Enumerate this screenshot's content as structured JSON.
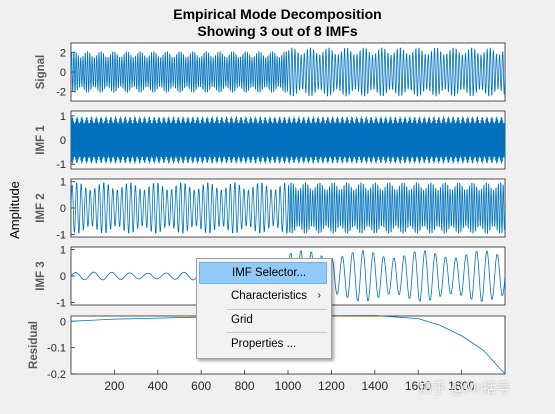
{
  "figure": {
    "title": "Empirical Mode Decomposition",
    "subtitle": "Showing 3 out of 8 IMFs",
    "y_common_label": "Amplitude"
  },
  "chart_data": [
    {
      "type": "line",
      "ylabel": "Signal",
      "xlim": [
        0,
        2000
      ],
      "ylim": [
        -3,
        3
      ],
      "yticks": [
        -2,
        0,
        2
      ],
      "series": [
        {
          "segments": [
            {
              "x_start": 0,
              "x_end": 1000,
              "amplitude": 2.2,
              "cycles": 95
            },
            {
              "x_start": 1000,
              "x_end": 2000,
              "amplitude": 2.6,
              "cycles": 70
            }
          ]
        }
      ]
    },
    {
      "type": "line",
      "ylabel": "IMF 1",
      "xlim": [
        0,
        2000
      ],
      "ylim": [
        -1.2,
        1.2
      ],
      "yticks": [
        -1,
        0,
        1
      ],
      "series": [
        {
          "segments": [
            {
              "x_start": 0,
              "x_end": 1000,
              "amplitude": 1.0,
              "cycles": 260
            },
            {
              "x_start": 1000,
              "x_end": 2000,
              "amplitude": 1.0,
              "cycles": 260
            }
          ]
        }
      ]
    },
    {
      "type": "line",
      "ylabel": "IMF 2",
      "xlim": [
        0,
        2000
      ],
      "ylim": [
        -1.1,
        1.1
      ],
      "yticks": [
        -1,
        0,
        1
      ],
      "series": [
        {
          "segments": [
            {
              "x_start": 0,
              "x_end": 1000,
              "amplitude": 1.0,
              "cycles": 48
            },
            {
              "x_start": 1000,
              "x_end": 2000,
              "amplitude": 1.0,
              "cycles": 90
            }
          ]
        }
      ]
    },
    {
      "type": "line",
      "ylabel": "IMF 3",
      "xlim": [
        0,
        2000
      ],
      "ylim": [
        -1.1,
        1.1
      ],
      "yticks": [
        -1,
        0,
        1
      ],
      "series": [
        {
          "segments": [
            {
              "x_start": 0,
              "x_end": 1000,
              "amplitude": 0.15,
              "cycles": 12
            },
            {
              "x_start": 1000,
              "x_end": 2000,
              "amplitude": 1.0,
              "cycles": 21
            }
          ]
        }
      ]
    },
    {
      "type": "line",
      "ylabel": "Residual",
      "xlim": [
        0,
        2000
      ],
      "ylim": [
        -0.2,
        0.02
      ],
      "yticks": [
        -0.2,
        -0.1,
        0
      ],
      "xticks": [
        200,
        400,
        600,
        800,
        1000,
        1200,
        1400,
        1600,
        1800
      ],
      "series": [
        {
          "points": [
            [
              0,
              0.0
            ],
            [
              200,
              0.008
            ],
            [
              400,
              0.012
            ],
            [
              600,
              0.016
            ],
            [
              800,
              0.018
            ],
            [
              1000,
              0.018
            ],
            [
              1200,
              0.021
            ],
            [
              1400,
              0.022
            ],
            [
              1600,
              0.01
            ],
            [
              1700,
              -0.015
            ],
            [
              1800,
              -0.055
            ],
            [
              1900,
              -0.11
            ],
            [
              2000,
              -0.2
            ]
          ]
        }
      ]
    }
  ],
  "colors": {
    "line": "#0072bd",
    "axes_bg": "#ffffff",
    "figure_bg": "#f0f0f0"
  },
  "context_menu": {
    "items": [
      {
        "label": "IMF Selector...",
        "selected": true
      },
      {
        "label": "Characteristics",
        "submenu": true
      },
      {
        "label": "Grid"
      },
      {
        "label": "Properties ..."
      }
    ]
  },
  "watermark": {
    "text": "知乎 @Mr括号"
  }
}
